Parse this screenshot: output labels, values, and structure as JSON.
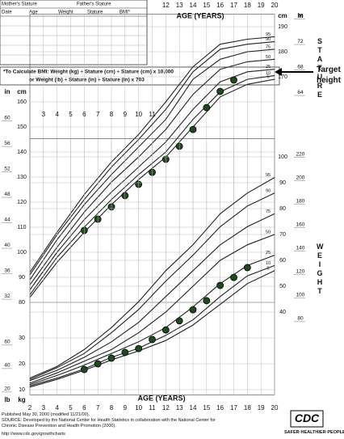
{
  "header": {
    "mother_stature": "Mother's Stature",
    "father_stature": "Father's Stature",
    "table_columns": [
      "Date",
      "Age",
      "Weight",
      "Stature",
      "BMI*"
    ],
    "bmi_formula": [
      "*To Calculate BMI: Weight (kg) ÷ Stature (cm) ÷ Stature (cm) x 10,000",
      "or Weight (lb) ÷ Stature (in) ÷ Stature (in) x 703"
    ]
  },
  "chart_data": [
    {
      "type": "line",
      "title": "AGE (YEARS)",
      "y_label": "cm",
      "y2_label": "in",
      "side_label": "STATURE",
      "annotation": "Target height",
      "xlim": [
        2,
        20
      ],
      "xticks": [
        3,
        4,
        5,
        6,
        7,
        8,
        9,
        10,
        11,
        12,
        13,
        14,
        15,
        16,
        17,
        18,
        19,
        20
      ],
      "ylim": [
        80,
        195
      ],
      "yticks": [
        80,
        90,
        100,
        110,
        120,
        130,
        140,
        150,
        160,
        170,
        180,
        190
      ],
      "y2lim": [
        31.5,
        76.77
      ],
      "y2ticks": [
        32,
        36,
        40,
        44,
        48,
        52,
        56,
        60,
        64,
        68,
        72,
        76
      ],
      "grid": true,
      "series": [
        {
          "name": "95",
          "color": "#222",
          "x": [
            2,
            4,
            6,
            8,
            10,
            12,
            14,
            16,
            18,
            20
          ],
          "values": [
            92,
            108,
            123,
            136,
            147,
            160,
            174,
            183,
            185,
            186
          ]
        },
        {
          "name": "90",
          "color": "#222",
          "x": [
            2,
            4,
            6,
            8,
            10,
            12,
            14,
            16,
            18,
            20
          ],
          "values": [
            91,
            107,
            121,
            134,
            145,
            157,
            172,
            181,
            183,
            184
          ]
        },
        {
          "name": "75",
          "color": "#222",
          "x": [
            2,
            4,
            6,
            8,
            10,
            12,
            14,
            16,
            18,
            20
          ],
          "values": [
            89,
            105,
            119,
            131,
            142,
            153,
            169,
            177,
            180,
            181
          ]
        },
        {
          "name": "50",
          "color": "#222",
          "x": [
            2,
            4,
            6,
            8,
            10,
            12,
            14,
            16,
            18,
            20
          ],
          "values": [
            87,
            102,
            116,
            128,
            138,
            149,
            163,
            173,
            176,
            177
          ]
        },
        {
          "name": "25",
          "color": "#222",
          "x": [
            2,
            4,
            6,
            8,
            10,
            12,
            14,
            16,
            18,
            20
          ],
          "values": [
            85,
            100,
            113,
            124,
            134,
            144,
            157,
            168,
            172,
            173
          ]
        },
        {
          "name": "10",
          "color": "#222",
          "x": [
            2,
            4,
            6,
            8,
            10,
            12,
            14,
            16,
            18,
            20
          ],
          "values": [
            83,
            98,
            110,
            121,
            131,
            140,
            153,
            164,
            169,
            170.5
          ]
        },
        {
          "name": "5",
          "color": "#222",
          "x": [
            2,
            4,
            6,
            8,
            10,
            12,
            14,
            16,
            18,
            20
          ],
          "values": [
            82,
            96,
            108,
            119,
            129,
            138,
            150,
            162,
            167,
            169
          ]
        }
      ],
      "points": {
        "color": "#1e4a1e",
        "x": [
          6,
          7,
          8,
          9,
          10,
          11,
          12,
          13,
          14,
          15,
          16,
          17
        ],
        "values": [
          108.7,
          113.2,
          118.1,
          122.6,
          127.1,
          131.9,
          137.1,
          142.3,
          149.0,
          157.7,
          164.2,
          168.7
        ]
      }
    },
    {
      "type": "line",
      "title": "AGE (YEARS)",
      "y_label": "kg",
      "y2_label": "lb",
      "side_label": "WEIGHT",
      "xlim": [
        2,
        20
      ],
      "xticks": [
        2,
        3,
        4,
        5,
        6,
        7,
        8,
        9,
        10,
        11,
        12,
        13,
        14,
        15,
        16,
        17,
        18,
        19,
        20
      ],
      "ylim": [
        8,
        107
      ],
      "yticks": [
        10,
        20,
        30,
        40,
        50,
        60,
        70,
        80,
        90,
        100
      ],
      "y2lim": [
        17.6,
        235.9
      ],
      "y2ticks": [
        20,
        40,
        60,
        80,
        100,
        120,
        140,
        160,
        180,
        200,
        220
      ],
      "grid": true,
      "series": [
        {
          "name": "95",
          "color": "#222",
          "x": [
            2,
            4,
            6,
            8,
            10,
            12,
            14,
            16,
            18,
            20
          ],
          "values": [
            14.5,
            19,
            25.5,
            34,
            44,
            56,
            66,
            78,
            86,
            92
          ]
        },
        {
          "name": "90",
          "color": "#222",
          "x": [
            2,
            4,
            6,
            8,
            10,
            12,
            14,
            16,
            18,
            20
          ],
          "values": [
            14,
            18.5,
            24,
            32,
            41,
            52,
            62,
            73,
            81,
            86
          ]
        },
        {
          "name": "75",
          "color": "#222",
          "x": [
            2,
            4,
            6,
            8,
            10,
            12,
            14,
            16,
            18,
            20
          ],
          "values": [
            13.5,
            17.5,
            22.5,
            28.5,
            36,
            46,
            56,
            66,
            73,
            78
          ]
        },
        {
          "name": "50",
          "color": "#222",
          "x": [
            2,
            4,
            6,
            8,
            10,
            12,
            14,
            16,
            18,
            20
          ],
          "values": [
            12.5,
            16.5,
            21,
            25.5,
            32,
            40,
            50,
            60,
            66,
            70
          ]
        },
        {
          "name": "25",
          "color": "#222",
          "x": [
            2,
            4,
            6,
            8,
            10,
            12,
            14,
            16,
            18,
            20
          ],
          "values": [
            12,
            15.5,
            19.5,
            24,
            28.5,
            34,
            42,
            51,
            58,
            62
          ]
        },
        {
          "name": "10",
          "color": "#222",
          "x": [
            2,
            4,
            6,
            8,
            10,
            12,
            14,
            16,
            18,
            20
          ],
          "values": [
            11.5,
            14.5,
            18,
            22.5,
            26,
            31,
            37,
            46,
            54,
            58
          ]
        },
        {
          "name": "5",
          "color": "#222",
          "x": [
            2,
            4,
            6,
            8,
            10,
            12,
            14,
            16,
            18,
            20
          ],
          "values": [
            11,
            14,
            17.5,
            21.5,
            25,
            29,
            35,
            43,
            51,
            56
          ]
        }
      ],
      "points": {
        "color": "#1e4a1e",
        "x": [
          6,
          7,
          8,
          9,
          10,
          11,
          12,
          13,
          14,
          15,
          16,
          17,
          18
        ],
        "values": [
          17.8,
          20.0,
          22.2,
          24.4,
          25.9,
          29.4,
          33.1,
          36.6,
          40.9,
          44.4,
          50.3,
          53.4,
          57.2
        ]
      }
    }
  ],
  "footer": {
    "published": "Published May 30, 2000 (modified 11/21/00).",
    "source": "SOURCE: Developed by the National Center for Health Statistics in collaboration with the National Center for Chronic Disease Prevention and Health Promotion (2000).",
    "url": "http://www.cdc.gov/growthcharts",
    "logo": "CDC",
    "tagline": "SAFER·HEALTHIER·PEOPLE™"
  }
}
